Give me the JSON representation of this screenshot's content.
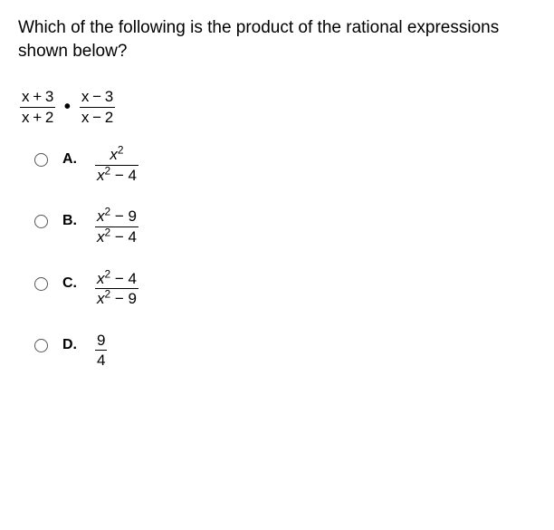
{
  "question": "Which of the following is the product of the rational expressions shown below?",
  "expression": {
    "frac1": {
      "num": "x + 3",
      "den": "x + 2"
    },
    "dot": "•",
    "frac2": {
      "num": "x − 3",
      "den": "x − 2"
    }
  },
  "options": {
    "A": {
      "letter": "A.",
      "num_x": "x",
      "num_exp": "2",
      "num_rest": "",
      "den_x": "x",
      "den_exp": "2",
      "den_rest": " − 4"
    },
    "B": {
      "letter": "B.",
      "num_x": "x",
      "num_exp": "2",
      "num_rest": " − 9",
      "den_x": "x",
      "den_exp": "2",
      "den_rest": " − 4"
    },
    "C": {
      "letter": "C.",
      "num_x": "x",
      "num_exp": "2",
      "num_rest": " − 4",
      "den_x": "x",
      "den_exp": "2",
      "den_rest": " − 9"
    },
    "D": {
      "letter": "D.",
      "num": "9",
      "den": "4"
    }
  }
}
